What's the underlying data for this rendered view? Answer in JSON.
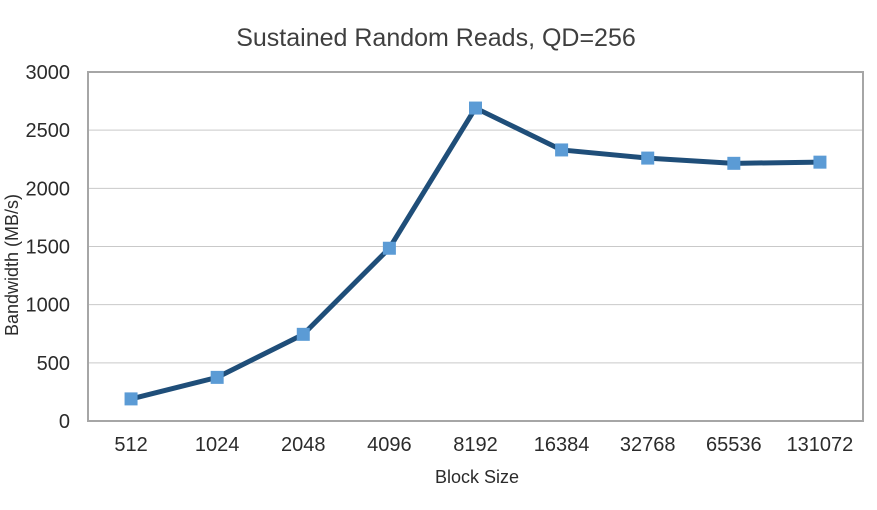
{
  "page": {
    "background": "#FFFFFF"
  },
  "chart_data": {
    "type": "line",
    "title": "Sustained Random Reads, QD=256",
    "xlabel": "Block Size",
    "ylabel": "Bandwidth (MB/s)",
    "categories": [
      "512",
      "1024",
      "2048",
      "4096",
      "8192",
      "16384",
      "32768",
      "65536",
      "131072"
    ],
    "series": [
      {
        "values": [
          190,
          375,
          745,
          1485,
          2690,
          2330,
          2260,
          2215,
          2225
        ]
      }
    ],
    "ylim": [
      0,
      3000
    ],
    "yticks": [
      0,
      500,
      1000,
      1500,
      2000,
      2500,
      3000
    ],
    "grid": "horizontal-only",
    "legend": "none",
    "marker": "square",
    "colors": {
      "line": "#1F4E79",
      "marker_fill": "#5B9BD5",
      "gridline": "#C9C9C9",
      "plot_border": "#A6A6A6",
      "title_text": "#3F3F3F",
      "axis_text": "#2B2B2B",
      "background": "#FFFFFF"
    }
  }
}
